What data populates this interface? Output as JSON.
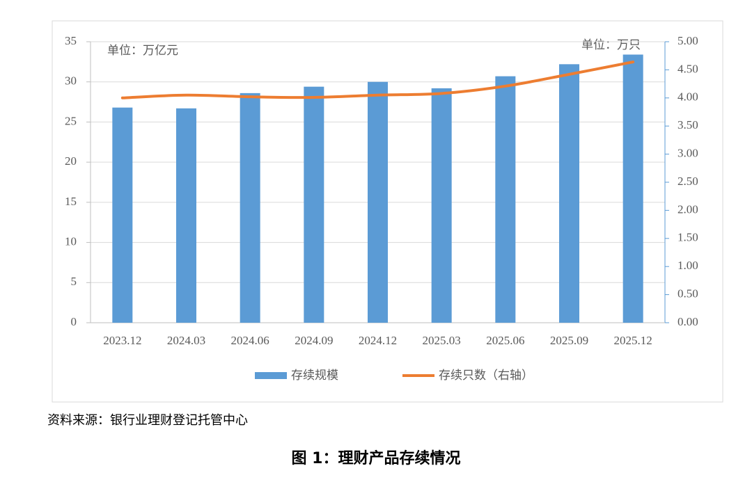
{
  "chart_data": {
    "type": "bar-line",
    "categories": [
      "2023.12",
      "2024.03",
      "2024.06",
      "2024.09",
      "2024.12",
      "2025.03",
      "2025.06",
      "2025.09",
      "2025.12"
    ],
    "series": [
      {
        "name": "存续规模",
        "type": "bar",
        "color": "#5b9bd5",
        "values": [
          26.8,
          26.7,
          28.6,
          29.4,
          30.0,
          29.2,
          30.7,
          32.2,
          33.4
        ]
      },
      {
        "name": "存续只数（右轴）",
        "type": "line",
        "axis": "y2",
        "color": "#ed7d31",
        "values": [
          4.0,
          4.05,
          4.02,
          4.01,
          4.05,
          4.08,
          4.21,
          4.42,
          4.64
        ]
      }
    ],
    "ylim": [
      0,
      35
    ],
    "yticks": [
      0,
      5,
      10,
      15,
      20,
      25,
      30,
      35
    ],
    "y2lim": [
      0,
      5
    ],
    "y2ticks": [
      {
        "value": 0,
        "label": "0.00"
      },
      {
        "value": 0.5,
        "label": "0.50"
      },
      {
        "value": 1,
        "label": "1.00"
      },
      {
        "value": 1.5,
        "label": "1.50"
      },
      {
        "value": 2,
        "label": "2.00"
      },
      {
        "value": 2.5,
        "label": "2.50"
      },
      {
        "value": 3,
        "label": "3.00"
      },
      {
        "value": 3.5,
        "label": "3.50"
      },
      {
        "value": 4,
        "label": "4.00"
      },
      {
        "value": 4.5,
        "label": "4.50"
      },
      {
        "value": 5,
        "label": "5.00"
      }
    ],
    "grid": true,
    "y_unit": "单位：万亿元",
    "y2_unit": "单位：万只",
    "source": "资料来源：银行业理财登记托管中心",
    "caption": "图 1：理财产品存续情况"
  }
}
